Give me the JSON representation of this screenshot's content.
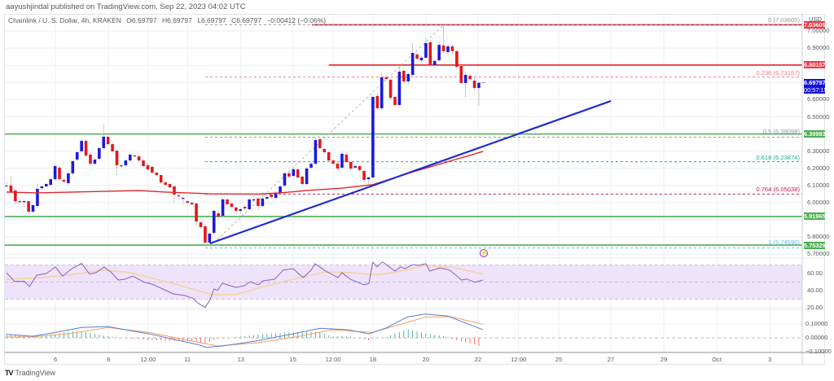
{
  "header": {
    "publish_line": "aayushjindal published on TradingView.com, Sep 22, 2023 04:02 UTC"
  },
  "legend": {
    "symbol": "Chainlink / U. S. Dollar, 4h, KRAKEN",
    "open": "O6.69797",
    "high": "H6.69797",
    "low": "L6.69797",
    "close": "C6.69797",
    "change": "−0.00412 (−0.06%)"
  },
  "price_axis": {
    "currency": "USD",
    "ticks": [
      "7.00000",
      "6.90000",
      "6.60000",
      "6.50000",
      "6.30000",
      "6.20000",
      "6.10000",
      "6.00000",
      "5.80000",
      "5.70000"
    ],
    "tick_values": [
      7.0,
      6.9,
      6.6,
      6.5,
      6.3,
      6.2,
      6.1,
      6.0,
      5.8,
      5.7
    ],
    "badges": [
      {
        "label": "7.03605",
        "value": 7.03605,
        "color": "#f23645"
      },
      {
        "label": "6.80157",
        "value": 6.80157,
        "color": "#f23645"
      },
      {
        "label": "6.69797",
        "sub": "00:57:15",
        "value": 6.69797,
        "color": "#1414dc"
      },
      {
        "label": "6.39983",
        "value": 6.39983,
        "color": "#4caf50"
      },
      {
        "label": "5.91965",
        "value": 5.91965,
        "color": "#4caf50"
      },
      {
        "label": "5.75329",
        "value": 5.75329,
        "color": "#4caf50"
      }
    ]
  },
  "rsi_axis": {
    "ticks": [
      "60.00",
      "40.00",
      "20.00"
    ],
    "tick_values": [
      60,
      40,
      20
    ]
  },
  "macd_axis": {
    "ticks": [
      "0.10000",
      "0.00000",
      "−0.10000"
    ],
    "tick_values": [
      0.1,
      0.0,
      -0.1
    ]
  },
  "time_axis": [
    {
      "label": "6",
      "i": 11.1
    },
    {
      "label": "8",
      "i": 23.1
    },
    {
      "label": "12:00",
      "i": 32.1
    },
    {
      "label": "11",
      "i": 41.0
    },
    {
      "label": "13",
      "i": 53.1
    },
    {
      "label": "15",
      "i": 64.9
    },
    {
      "label": "12:00",
      "i": 74.0
    },
    {
      "label": "18",
      "i": 83.0
    },
    {
      "label": "20",
      "i": 95.0
    },
    {
      "label": "22",
      "i": 106.8
    },
    {
      "label": "12:00",
      "i": 116.0
    },
    {
      "label": "25",
      "i": 125.1
    },
    {
      "label": "27",
      "i": 136.9
    },
    {
      "label": "29",
      "i": 148.9
    },
    {
      "label": "Oct",
      "i": 160.9
    },
    {
      "label": "3",
      "i": 172.9
    }
  ],
  "footer": {
    "brand": "TradingView",
    "logo_mark": "TV"
  },
  "colors": {
    "bull": "#1a1adb",
    "bear": "#e3171c",
    "support": "#4caf50",
    "resistance": "#e3171c",
    "trendline": "#1f2ad1",
    "sma": "#e0262b",
    "rsi": "#8e5cb8",
    "rsi_ma": "#f3d4a0",
    "rsi_band": "#efe3fb",
    "macd": "#5b7bd6",
    "signal": "#f0a05a",
    "hist_pos": "#26a69a",
    "hist_neg": "#ef5350",
    "grid": "#eceef2"
  },
  "chart_data": {
    "type": "candlestick",
    "title": "Chainlink / U. S. Dollar, 4h, KRAKEN",
    "xlabel": "",
    "ylabel": "USD",
    "ylim": [
      5.66,
      7.1
    ],
    "grid": true,
    "last_price": 6.69797,
    "candles_ohlc": [
      [
        6.1,
        6.12,
        6.09,
        6.095
      ],
      [
        6.1,
        6.155,
        6.055,
        6.062
      ],
      [
        6.071,
        6.08,
        5.99,
        6.009
      ],
      [
        6.009,
        6.02,
        5.99,
        6.007
      ],
      [
        6.008,
        6.02,
        5.97,
        6.009
      ],
      [
        6.009,
        6.015,
        5.935,
        5.948
      ],
      [
        5.948,
        5.99,
        5.94,
        5.986
      ],
      [
        5.981,
        6.114,
        5.97,
        6.081
      ],
      [
        6.085,
        6.1,
        6.075,
        6.095
      ],
      [
        6.095,
        6.115,
        6.09,
        6.109
      ],
      [
        6.104,
        6.145,
        6.1,
        6.137
      ],
      [
        6.137,
        6.225,
        6.13,
        6.213
      ],
      [
        6.204,
        6.215,
        6.13,
        6.137
      ],
      [
        6.133,
        6.14,
        6.115,
        6.123
      ],
      [
        6.114,
        6.18,
        6.1,
        6.171
      ],
      [
        6.171,
        6.25,
        6.16,
        6.242
      ],
      [
        6.251,
        6.3,
        6.24,
        6.294
      ],
      [
        6.299,
        6.375,
        6.29,
        6.36
      ],
      [
        6.36,
        6.37,
        6.265,
        6.275
      ],
      [
        6.28,
        6.29,
        6.215,
        6.227
      ],
      [
        6.227,
        6.26,
        6.22,
        6.251
      ],
      [
        6.256,
        6.325,
        6.25,
        6.318
      ],
      [
        6.318,
        6.46,
        6.31,
        6.384
      ],
      [
        6.384,
        6.39,
        6.335,
        6.341
      ],
      [
        6.341,
        6.35,
        6.29,
        6.299
      ],
      [
        6.303,
        6.31,
        6.16,
        6.218
      ],
      [
        6.218,
        6.23,
        6.205,
        6.215
      ],
      [
        6.218,
        6.255,
        6.21,
        6.246
      ],
      [
        6.246,
        6.29,
        6.24,
        6.28
      ],
      [
        6.275,
        6.285,
        6.265,
        6.27
      ],
      [
        6.27,
        6.28,
        6.24,
        6.246
      ],
      [
        6.246,
        6.255,
        6.205,
        6.213
      ],
      [
        6.218,
        6.225,
        6.185,
        6.194
      ],
      [
        6.209,
        6.215,
        6.168,
        6.175
      ],
      [
        6.175,
        6.18,
        6.155,
        6.161
      ],
      [
        6.161,
        6.165,
        6.11,
        6.118
      ],
      [
        6.118,
        6.125,
        6.095,
        6.104
      ],
      [
        6.109,
        6.115,
        6.085,
        6.09
      ],
      [
        6.095,
        6.1,
        6.0,
        6.047
      ],
      [
        6.043,
        6.055,
        6.02,
        6.04
      ],
      [
        6.024,
        6.035,
        5.99,
        6.028
      ],
      [
        6.009,
        6.015,
        5.995,
        6.0
      ],
      [
        6.0,
        6.005,
        5.985,
        5.991
      ],
      [
        5.995,
        6.0,
        5.87,
        5.891
      ],
      [
        5.886,
        5.89,
        5.85,
        5.858
      ],
      [
        5.863,
        5.87,
        5.746,
        5.768
      ],
      [
        5.768,
        5.83,
        5.75,
        5.82
      ],
      [
        5.825,
        5.96,
        5.815,
        5.953
      ],
      [
        5.938,
        5.95,
        5.9,
        5.919
      ],
      [
        5.924,
        6.03,
        5.915,
        6.019
      ],
      [
        6.019,
        6.03,
        5.985,
        5.991
      ],
      [
        5.995,
        6.0,
        5.965,
        5.976
      ],
      [
        5.972,
        5.98,
        5.945,
        5.953
      ],
      [
        5.953,
        5.97,
        5.94,
        5.962
      ],
      [
        5.976,
        5.985,
        5.955,
        5.967
      ],
      [
        5.962,
        6.03,
        5.955,
        6.019
      ],
      [
        6.014,
        6.04,
        6.005,
        6.019
      ],
      [
        6.024,
        6.035,
        5.96,
        5.981
      ],
      [
        5.981,
        6.06,
        5.97,
        6.024
      ],
      [
        6.024,
        6.045,
        6.015,
        6.033
      ],
      [
        6.047,
        6.06,
        6.025,
        6.033
      ],
      [
        6.028,
        6.065,
        6.02,
        6.057
      ],
      [
        6.057,
        6.1,
        6.045,
        6.095
      ],
      [
        6.1,
        6.18,
        6.09,
        6.171
      ],
      [
        6.171,
        6.185,
        6.145,
        6.152
      ],
      [
        6.156,
        6.21,
        6.15,
        6.194
      ],
      [
        6.194,
        6.2,
        6.14,
        6.147
      ],
      [
        6.152,
        6.16,
        6.1,
        6.109
      ],
      [
        6.109,
        6.21,
        6.1,
        6.199
      ],
      [
        6.204,
        6.24,
        6.195,
        6.227
      ],
      [
        6.227,
        6.38,
        6.22,
        6.365
      ],
      [
        6.37,
        6.385,
        6.31,
        6.318
      ],
      [
        6.313,
        6.32,
        6.285,
        6.294
      ],
      [
        6.294,
        6.3,
        6.24,
        6.246
      ],
      [
        6.246,
        6.255,
        6.22,
        6.227
      ],
      [
        6.227,
        6.235,
        6.19,
        6.199
      ],
      [
        6.204,
        6.3,
        6.195,
        6.285
      ],
      [
        6.28,
        6.29,
        6.23,
        6.237
      ],
      [
        6.237,
        6.245,
        6.185,
        6.199
      ],
      [
        6.204,
        6.22,
        6.195,
        6.213
      ],
      [
        6.213,
        6.22,
        6.18,
        6.19
      ],
      [
        6.185,
        6.19,
        6.12,
        6.133
      ],
      [
        6.137,
        6.15,
        6.11,
        6.147
      ],
      [
        6.147,
        6.63,
        6.14,
        6.616
      ],
      [
        6.621,
        6.64,
        6.54,
        6.55
      ],
      [
        6.55,
        6.76,
        6.54,
        6.73
      ],
      [
        6.73,
        6.745,
        6.71,
        6.72
      ],
      [
        6.716,
        6.725,
        6.6,
        6.611
      ],
      [
        6.616,
        6.625,
        6.555,
        6.569
      ],
      [
        6.569,
        6.79,
        6.56,
        6.763
      ],
      [
        6.768,
        6.78,
        6.695,
        6.706
      ],
      [
        6.706,
        6.76,
        6.69,
        6.749
      ],
      [
        6.744,
        6.93,
        6.735,
        6.872
      ],
      [
        6.863,
        6.88,
        6.83,
        6.839
      ],
      [
        6.829,
        6.85,
        6.815,
        6.844
      ],
      [
        6.844,
        6.96,
        6.835,
        6.929
      ],
      [
        6.934,
        6.95,
        6.79,
        6.801
      ],
      [
        6.801,
        6.835,
        6.79,
        6.825
      ],
      [
        6.829,
        6.94,
        6.82,
        6.919
      ],
      [
        6.915,
        7.036,
        6.87,
        6.882
      ],
      [
        6.877,
        6.925,
        6.86,
        6.91
      ],
      [
        6.91,
        6.92,
        6.86,
        6.882
      ],
      [
        6.882,
        6.89,
        6.78,
        6.791
      ],
      [
        6.796,
        6.81,
        6.69,
        6.697
      ],
      [
        6.697,
        6.76,
        6.611,
        6.744
      ],
      [
        6.739,
        6.75,
        6.71,
        6.72
      ],
      [
        6.711,
        6.73,
        6.655,
        6.668
      ],
      [
        6.668,
        6.705,
        6.564,
        6.698
      ]
    ],
    "sma_100": [
      [
        0,
        6.062
      ],
      [
        7,
        6.057
      ],
      [
        22,
        6.066
      ],
      [
        30,
        6.071
      ],
      [
        36,
        6.062
      ],
      [
        46,
        6.052
      ],
      [
        57,
        6.05
      ],
      [
        62,
        6.057
      ],
      [
        68,
        6.071
      ],
      [
        76,
        6.085
      ],
      [
        83,
        6.105
      ],
      [
        91,
        6.171
      ],
      [
        108,
        6.299
      ]
    ],
    "horizontal_levels": [
      {
        "name": "resistance-7.036",
        "value": 7.03605,
        "color": "#e3171c",
        "from_i": 69.2
      },
      {
        "name": "resistance-6.80157",
        "value": 6.80157,
        "color": "#e3171c",
        "from_i": 73.0
      },
      {
        "name": "support-6.39983",
        "value": 6.39983,
        "color": "#4caf50",
        "from_i": -0.5
      },
      {
        "name": "support-5.91965",
        "value": 5.91965,
        "color": "#4caf50",
        "from_i": -0.5
      },
      {
        "name": "support-5.75329",
        "value": 5.75329,
        "color": "#4caf50",
        "from_i": -0.5
      }
    ],
    "fibonacci": {
      "from_i": 45.0,
      "levels": [
        {
          "ratio": "0",
          "label": "0 (7.03605)",
          "value": 7.03605,
          "color": "#9598a1"
        },
        {
          "ratio": "0.236",
          "label": "0.236 (6.73157)",
          "value": 6.73157,
          "color": "#f77c80"
        },
        {
          "ratio": "0.5",
          "label": "0.5 (6.39098)",
          "value": 6.39098,
          "color": "#9598a1"
        },
        {
          "ratio": "0.618",
          "label": "0.618 (6.23874)",
          "value": 6.23874,
          "color": "#22ab94"
        },
        {
          "ratio": "0.764",
          "label": "0.764 (6.05038)",
          "value": 6.05038,
          "color": "#c2185b"
        },
        {
          "ratio": "1",
          "label": "1 (5.74590)",
          "value": 5.7459,
          "color": "#64b5f6"
        }
      ],
      "diagonal": {
        "start": {
          "i": 46.1,
          "p": 5.746
        },
        "end": {
          "i": 99.1,
          "p": 7.036
        }
      }
    },
    "trendline": {
      "start": {
        "i": 46.1,
        "p": 5.763
      },
      "end": {
        "i": 136.9,
        "p": 6.592
      }
    },
    "rsi": {
      "upper": 70,
      "middle": 50,
      "lower": 30,
      "values": [
        [
          0,
          61
        ],
        [
          1.8,
          50.8
        ],
        [
          4.1,
          50.8
        ],
        [
          5.2,
          44.7
        ],
        [
          6.8,
          58
        ],
        [
          9,
          60
        ],
        [
          11.1,
          67.6
        ],
        [
          12.7,
          57
        ],
        [
          14.8,
          65.7
        ],
        [
          17,
          72
        ],
        [
          18.8,
          59.4
        ],
        [
          20.3,
          61
        ],
        [
          22.1,
          67.6
        ],
        [
          23.8,
          61
        ],
        [
          25.3,
          52.4
        ],
        [
          26.8,
          53.3
        ],
        [
          28.6,
          57
        ],
        [
          31.2,
          49.8
        ],
        [
          33,
          47.6
        ],
        [
          35.4,
          41.9
        ],
        [
          37.8,
          36.2
        ],
        [
          40.4,
          34.3
        ],
        [
          42.3,
          30.8
        ],
        [
          43.2,
          26
        ],
        [
          45,
          20.3
        ],
        [
          46.1,
          29.5
        ],
        [
          47,
          41.9
        ],
        [
          47.8,
          40.3
        ],
        [
          48.9,
          48.6
        ],
        [
          52,
          43.8
        ],
        [
          53.9,
          45.7
        ],
        [
          55.2,
          50.5
        ],
        [
          57,
          46.7
        ],
        [
          58.1,
          51.4
        ],
        [
          60.7,
          53.3
        ],
        [
          62.7,
          64
        ],
        [
          64.9,
          65.7
        ],
        [
          67.2,
          55.2
        ],
        [
          69,
          64
        ],
        [
          69.9,
          71.4
        ],
        [
          72.3,
          62.9
        ],
        [
          75.1,
          55.2
        ],
        [
          76,
          61
        ],
        [
          77.9,
          53.3
        ],
        [
          81,
          46.7
        ],
        [
          82.1,
          48.6
        ],
        [
          83,
          73.3
        ],
        [
          83.9,
          67.9
        ],
        [
          85.2,
          73.6
        ],
        [
          88,
          62.9
        ],
        [
          89.3,
          67.9
        ],
        [
          90.2,
          65.7
        ],
        [
          92.1,
          70.5
        ],
        [
          93.2,
          69.5
        ],
        [
          95,
          71.4
        ],
        [
          95.9,
          62.9
        ],
        [
          98.2,
          66.7
        ],
        [
          100.4,
          64
        ],
        [
          103.1,
          52.4
        ],
        [
          104.2,
          53.6
        ],
        [
          106.1,
          49.8
        ],
        [
          107.9,
          52.4
        ]
      ],
      "ma": [
        [
          0,
          53.3
        ],
        [
          6.4,
          54.6
        ],
        [
          13.8,
          58
        ],
        [
          22,
          64
        ],
        [
          28,
          61
        ],
        [
          36.7,
          49.8
        ],
        [
          46.5,
          35.5
        ],
        [
          52,
          35.5
        ],
        [
          57.6,
          43.8
        ],
        [
          64.9,
          53.3
        ],
        [
          72.3,
          61.9
        ],
        [
          78.4,
          61
        ],
        [
          83.4,
          58.4
        ],
        [
          87.6,
          61
        ],
        [
          95,
          69.5
        ],
        [
          100.6,
          67.6
        ],
        [
          107.9,
          59.4
        ]
      ]
    },
    "macd": {
      "macd_line": [
        [
          0,
          0.025
        ],
        [
          6,
          0.012
        ],
        [
          11,
          0.039
        ],
        [
          17,
          0.075
        ],
        [
          23,
          0.082
        ],
        [
          27.5,
          0.055
        ],
        [
          32.3,
          0.029
        ],
        [
          37.8,
          -0.01
        ],
        [
          43.4,
          -0.049
        ],
        [
          45.2,
          -0.069
        ],
        [
          48.9,
          -0.059
        ],
        [
          56.3,
          -0.024
        ],
        [
          64.9,
          0.029
        ],
        [
          71,
          0.069
        ],
        [
          77.3,
          0.059
        ],
        [
          82.1,
          0.029
        ],
        [
          85.8,
          0.069
        ],
        [
          90.8,
          0.151
        ],
        [
          95,
          0.172
        ],
        [
          100,
          0.157
        ],
        [
          103.1,
          0.118
        ],
        [
          107.9,
          0.059
        ]
      ],
      "signal_line": [
        [
          0,
          0.006
        ],
        [
          6,
          0.008
        ],
        [
          13.8,
          0.029
        ],
        [
          23,
          0.075
        ],
        [
          32.3,
          0.039
        ],
        [
          41.5,
          -0.02
        ],
        [
          47.8,
          -0.059
        ],
        [
          57,
          -0.035
        ],
        [
          66.2,
          0.01
        ],
        [
          73.6,
          0.059
        ],
        [
          82.8,
          0.039
        ],
        [
          90.8,
          0.112
        ],
        [
          95,
          0.151
        ],
        [
          100.6,
          0.153
        ],
        [
          107.9,
          0.098
        ]
      ]
    }
  }
}
